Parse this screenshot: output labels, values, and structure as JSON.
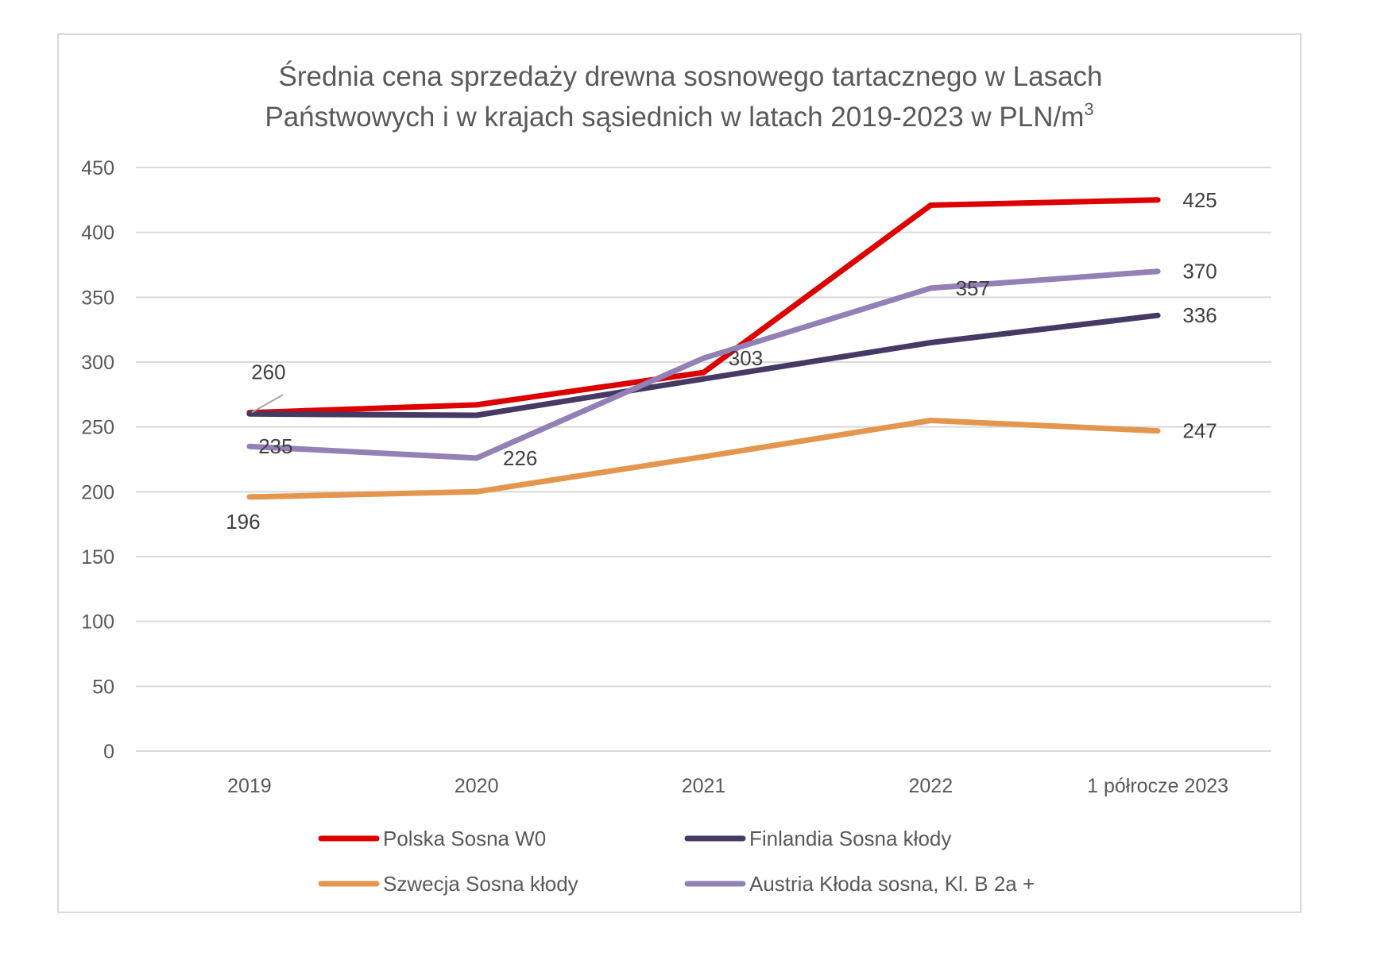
{
  "chart_data": {
    "type": "line",
    "title_lines": [
      "Średnia cena sprzedaży drewna sosnowego tartacznego w Lasach",
      "Państwowych i w krajach sąsiednich w latach 2019-2023 w PLN/m"
    ],
    "title_superscript": "3",
    "xlabel": "",
    "ylabel": "",
    "categories": [
      "2019",
      "2020",
      "2021",
      "2022",
      "1 półrocze 2023"
    ],
    "ylim": [
      0,
      450
    ],
    "yticks": [
      0,
      50,
      100,
      150,
      200,
      250,
      300,
      350,
      400,
      450
    ],
    "grid": true,
    "legend_position": "bottom",
    "series": [
      {
        "name": "Polska Sosna W0",
        "color": "#dc0000",
        "values": [
          261,
          267,
          292,
          421,
          425
        ],
        "data_labels": [
          null,
          null,
          null,
          null,
          "425"
        ]
      },
      {
        "name": "Finlandia Sosna kłody",
        "color": "#463a64",
        "values": [
          260,
          259,
          287,
          315,
          336
        ],
        "data_labels": [
          "260",
          null,
          null,
          null,
          "336"
        ]
      },
      {
        "name": "Szwecja Sosna kłody",
        "color": "#e4964e",
        "values": [
          196,
          200,
          227,
          255,
          247
        ],
        "data_labels": [
          "196",
          null,
          null,
          null,
          "247"
        ]
      },
      {
        "name": "Austria Kłoda sosna, Kl. B 2a +",
        "color": "#9381b6",
        "values": [
          235,
          226,
          303,
          357,
          370
        ],
        "data_labels": [
          "235",
          "226",
          "303",
          "357",
          "370"
        ]
      }
    ]
  }
}
